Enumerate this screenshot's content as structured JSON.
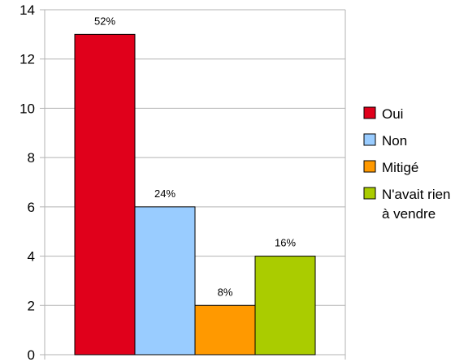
{
  "chart_data": {
    "type": "bar",
    "categories": [
      "Oui",
      "Non",
      "Mitigé",
      "N'avait rien à vendre"
    ],
    "values": [
      13,
      6,
      2,
      4
    ],
    "data_labels": [
      "52%",
      "24%",
      "8%",
      "16%"
    ],
    "colors": [
      "#e0001b",
      "#99ccff",
      "#ff9900",
      "#aacc00"
    ],
    "ylim": [
      0,
      14
    ],
    "yticks": [
      0,
      2,
      4,
      6,
      8,
      10,
      12,
      14
    ],
    "grid": true,
    "legend_position": "right",
    "legend": [
      {
        "lines": [
          "Oui"
        ],
        "color": "#e0001b"
      },
      {
        "lines": [
          "Non"
        ],
        "color": "#99ccff"
      },
      {
        "lines": [
          "Mitigé"
        ],
        "color": "#ff9900"
      },
      {
        "lines": [
          "N'avait rien",
          "à vendre"
        ],
        "color": "#aacc00"
      }
    ],
    "title": "",
    "xlabel": "",
    "ylabel": ""
  }
}
